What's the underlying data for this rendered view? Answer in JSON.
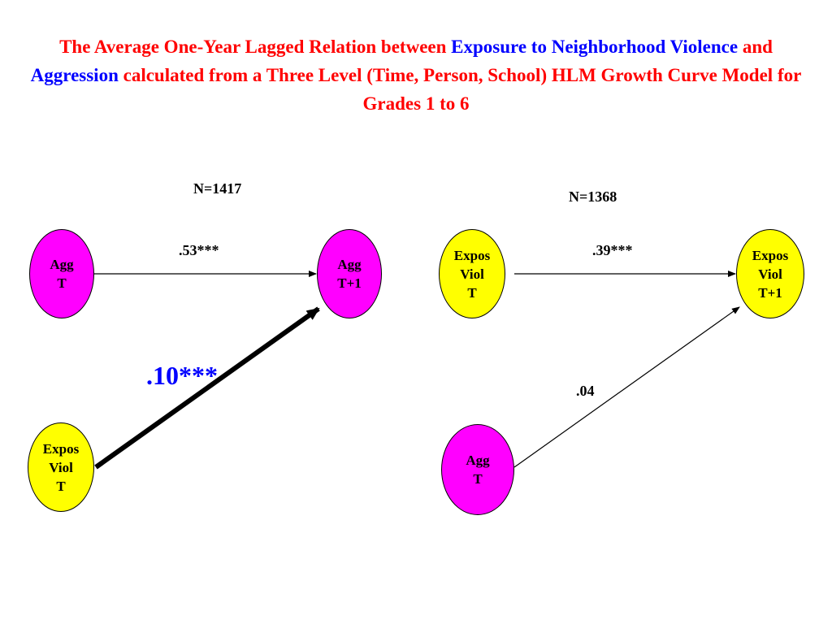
{
  "title": {
    "parts": [
      {
        "text": "The Average One-Year Lagged Relation between ",
        "color": "red"
      },
      {
        "text": "Exposure to Neighborhood Violence",
        "color": "blue"
      },
      {
        "text": " and ",
        "color": "red"
      },
      {
        "text": "Aggression",
        "color": "blue"
      },
      {
        "text": " calculated from a Three Level (Time, Person, School) HLM Growth Curve Model for Grades 1 to 6",
        "color": "red"
      }
    ]
  },
  "colors": {
    "red": "#ff0000",
    "blue": "#0000ff",
    "agg_node": "#ff00ff",
    "expos_node": "#ffff00"
  },
  "left_model": {
    "n": "N=1417",
    "nodes": {
      "agg_t": [
        "Agg",
        "T"
      ],
      "agg_t1": [
        "Agg",
        "T+1"
      ],
      "expos_t": [
        "Expos",
        "Viol",
        "T"
      ]
    },
    "paths": {
      "stability": ".53***",
      "cross_lag": ".10***"
    }
  },
  "right_model": {
    "n": "N=1368",
    "nodes": {
      "expos_t": [
        "Expos",
        "Viol",
        "T"
      ],
      "expos_t1": [
        "Expos",
        "Viol",
        "T+1"
      ],
      "agg_t": [
        "Agg",
        "T"
      ]
    },
    "paths": {
      "stability": ".39***",
      "cross_lag": ".04"
    }
  }
}
